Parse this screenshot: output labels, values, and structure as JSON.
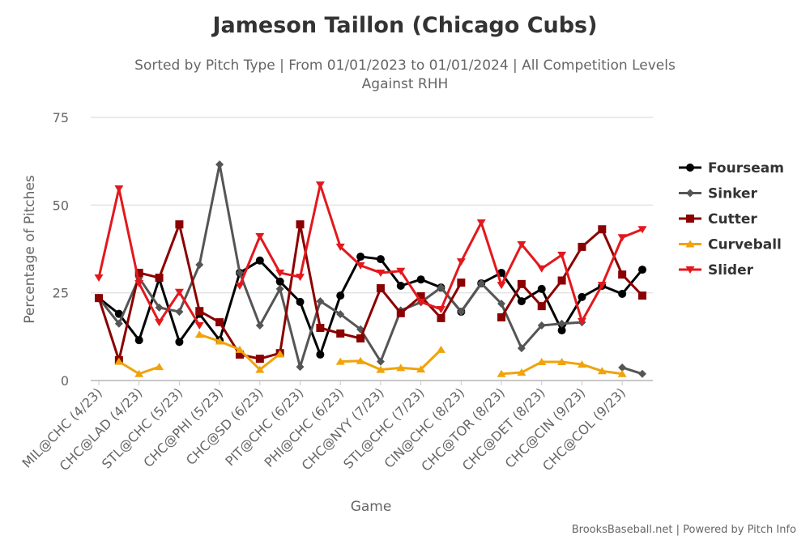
{
  "chart_data": {
    "type": "line",
    "title": "Jameson Taillon (Chicago Cubs)",
    "subtitle": [
      "Sorted by Pitch Type | From 01/01/2023 to 01/01/2024 | All Competition Levels",
      "Against RHH"
    ],
    "xlabel": "Game",
    "ylabel": "Percentage of Pitches",
    "ylim": [
      0,
      75
    ],
    "yticks": [
      0,
      25,
      50,
      75
    ],
    "grid": true,
    "legend_position": "right",
    "x_tick_labels": [
      "MIL@CHC (4/23)",
      "CHC@LAD (4/23)",
      "STL@CHC (5/23)",
      "CHC@PHI (5/23)",
      "CHC@SD (6/23)",
      "PIT@CHC (6/23)",
      "PHI@CHC (6/23)",
      "CHC@NYY (7/23)",
      "STL@CHC (7/23)",
      "CIN@CHC (8/23)",
      "CHC@TOR (8/23)",
      "CHC@DET (8/23)",
      "CHC@CIN (9/23)",
      "CHC@COL (9/23)"
    ],
    "series": [
      {
        "name": "Fourseam",
        "color": "#000000",
        "marker": "circle",
        "values": [
          23.5,
          19,
          11.5,
          29,
          11,
          19,
          11.5,
          30.7,
          34.2,
          28.2,
          22.4,
          7.4,
          24.2,
          35.3,
          34.6,
          27,
          28.8,
          26.5,
          19.6,
          27.7,
          30.7,
          22.6,
          26.1,
          14.3,
          23.8,
          27,
          24.7,
          31.6
        ]
      },
      {
        "name": "Sinker",
        "color": "#555555",
        "marker": "diamond",
        "values": [
          23.5,
          16.2,
          29.3,
          20.8,
          19.6,
          33,
          61.6,
          30.7,
          15.7,
          26.1,
          3.9,
          22.6,
          18.9,
          14.6,
          5.4,
          20,
          22.3,
          26.5,
          19.6,
          27.7,
          21.9,
          9.2,
          15.7,
          16.2,
          16.6,
          null,
          3.7,
          1.9
        ]
      },
      {
        "name": "Cutter",
        "color": "#8b0000",
        "marker": "square",
        "values": [
          23.5,
          5.8,
          30.7,
          29.3,
          44.5,
          19.8,
          16.6,
          7.4,
          6.2,
          7.8,
          44.5,
          15,
          13.4,
          12,
          26.3,
          19.2,
          24,
          17.8,
          27.9,
          null,
          18,
          27.5,
          21.2,
          28.5,
          38.1,
          43.1,
          30.2,
          24.2
        ]
      },
      {
        "name": "Curveball",
        "color": "#f0a30a",
        "marker": "triangle-up",
        "values": [
          null,
          5.4,
          1.9,
          3.9,
          null,
          13.1,
          11.2,
          8.8,
          3.1,
          7.6,
          null,
          null,
          5.4,
          5.6,
          3.1,
          3.6,
          3.2,
          8.8,
          null,
          null,
          1.9,
          2.3,
          5.3,
          5.3,
          4.6,
          2.7,
          1.9,
          null
        ]
      },
      {
        "name": "Slider",
        "color": "#e3181d",
        "marker": "triangle-down",
        "values": [
          29.3,
          54.7,
          27.7,
          16.6,
          25.2,
          15.7,
          null,
          27,
          41.1,
          30.7,
          29.5,
          55.8,
          38.1,
          32.8,
          30.7,
          31.2,
          22.4,
          20.3,
          33.9,
          45,
          27.2,
          38.8,
          31.9,
          35.8,
          16.9,
          27.2,
          40.8,
          43.1
        ]
      }
    ]
  },
  "credit": "BrooksBaseball.net | Powered by Pitch Info"
}
